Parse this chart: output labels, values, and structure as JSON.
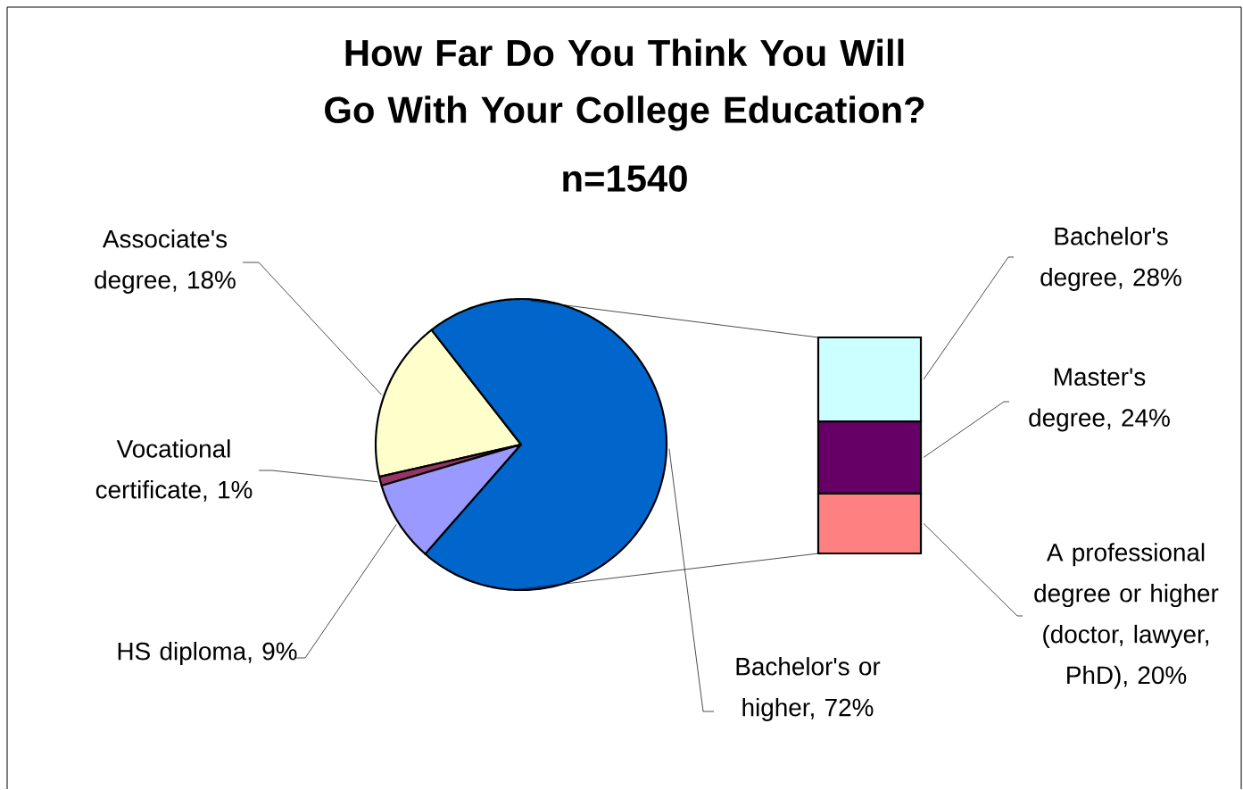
{
  "chart_data": [
    {
      "type": "pie",
      "title": "How Far Do You Think You Will Go With Your College Education?",
      "subtitle": "n=1540",
      "categories": [
        "Associate's degree, 18%",
        "Vocational certificate, 1%",
        "HS diploma, 9%",
        "Bachelor's or higher, 72%"
      ],
      "values": [
        18,
        1,
        9,
        72
      ],
      "colors": [
        "#ffffcc",
        "#993366",
        "#9999ff",
        "#0066cc"
      ]
    },
    {
      "type": "bar",
      "stacked": true,
      "categories": [
        null
      ],
      "series": [
        {
          "color": "#ff8080",
          "values": [
            20
          ],
          "value_labels": [
            "A professional degree or higher (doctor, lawyer, PhD), 20%"
          ]
        },
        {
          "color": "#660066",
          "values": [
            24
          ],
          "value_labels": [
            "Master's degree, 24%"
          ]
        },
        {
          "color": "#ccffff",
          "values": [
            28
          ],
          "value_labels": [
            "Bachelor's degree, 28%"
          ]
        }
      ]
    }
  ]
}
